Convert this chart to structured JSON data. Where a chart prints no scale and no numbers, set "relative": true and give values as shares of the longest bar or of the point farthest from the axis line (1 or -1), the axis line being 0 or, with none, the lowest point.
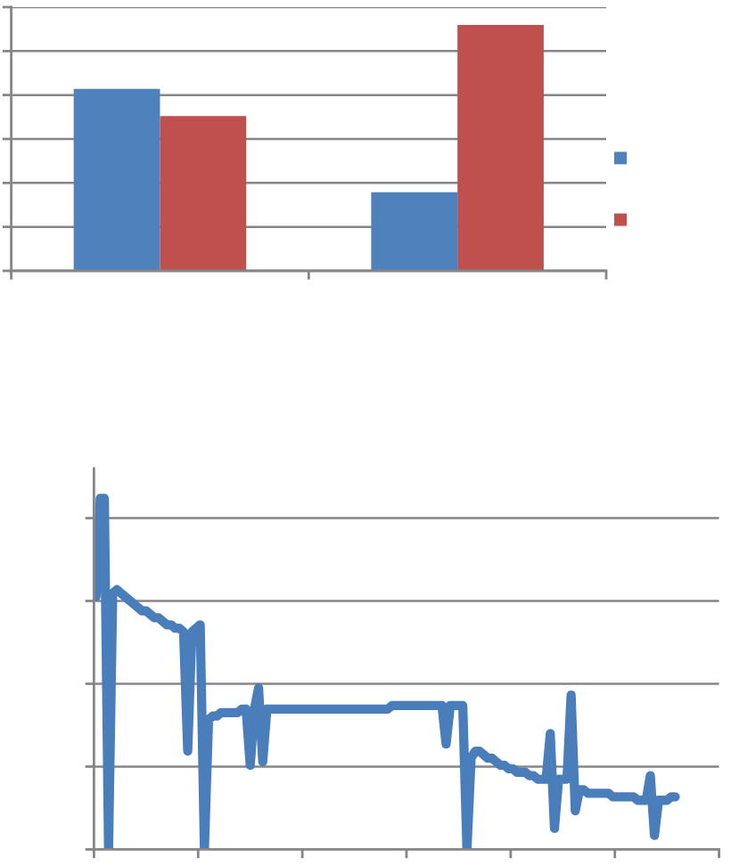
{
  "chart_data": [
    {
      "type": "bar",
      "relative": true,
      "categories": [
        null,
        null
      ],
      "series": [
        {
          "color": "#4f81bd",
          "values": [
            0.74,
            0.32
          ]
        },
        {
          "color": "#c0504d",
          "values": [
            0.63,
            1.0
          ]
        }
      ],
      "grid": "y"
    },
    {
      "type": "line",
      "relative": true,
      "grid": "y",
      "categories": [
        null,
        null,
        null,
        null,
        null,
        null,
        null,
        null,
        null,
        null,
        null,
        null,
        null,
        null,
        null,
        null,
        null,
        null,
        null,
        null,
        null,
        null,
        null,
        null,
        null,
        null,
        null,
        null,
        null,
        null,
        null,
        null,
        null,
        null,
        null,
        null,
        null,
        null,
        null,
        null,
        null,
        null,
        null,
        null,
        null,
        null,
        null,
        null,
        null,
        null,
        null,
        null,
        null,
        null,
        null,
        null,
        null,
        null,
        null,
        null,
        null,
        null,
        null,
        null,
        null,
        null,
        null,
        null,
        null,
        null,
        null,
        null,
        null,
        null,
        null,
        null,
        null,
        null,
        null,
        null,
        null,
        null,
        null,
        null,
        null,
        null,
        null,
        null,
        null,
        null,
        null,
        null,
        null,
        null,
        null,
        null,
        null,
        null,
        null,
        null,
        null,
        null,
        null,
        null,
        null,
        null,
        null,
        null,
        null,
        null,
        null,
        null,
        null,
        null,
        null,
        null,
        null,
        null,
        null,
        null,
        null,
        null,
        null,
        null,
        null,
        null,
        null,
        null,
        null,
        null,
        null,
        null,
        null,
        null,
        null,
        null,
        null,
        null,
        null,
        null,
        null,
        null,
        null,
        null,
        null,
        null,
        null,
        null,
        null,
        null
      ],
      "series": [
        {
          "color": "#4a7ebb",
          "values": [
            0.72,
            1.0,
            1.0,
            0,
            0.73,
            0.74,
            0.73,
            0.72,
            0.71,
            0.7,
            0.69,
            0.68,
            0.68,
            0.67,
            0.66,
            0.66,
            0.65,
            0.64,
            0.64,
            0.63,
            0.63,
            0.62,
            0.28,
            0.62,
            0.63,
            0.64,
            0,
            0.37,
            0.38,
            0.38,
            0.39,
            0.39,
            0.39,
            0.39,
            0.39,
            0.4,
            0.4,
            0.24,
            0.4,
            0.46,
            0.25,
            0.4,
            0.4,
            0.4,
            0.4,
            0.4,
            0.4,
            0.4,
            0.4,
            0.4,
            0.4,
            0.4,
            0.4,
            0.4,
            0.4,
            0.4,
            0.4,
            0.4,
            0.4,
            0.4,
            0.4,
            0.4,
            0.4,
            0.4,
            0.4,
            0.4,
            0.4,
            0.4,
            0.4,
            0.4,
            0.4,
            0.41,
            0.41,
            0.41,
            0.41,
            0.41,
            0.41,
            0.41,
            0.41,
            0.41,
            0.41,
            0.41,
            0.41,
            0.41,
            0.3,
            0.41,
            0.41,
            0.41,
            0.41,
            0,
            0.26,
            0.28,
            0.28,
            0.27,
            0.26,
            0.26,
            0.25,
            0.24,
            0.24,
            0.23,
            0.23,
            0.22,
            0.22,
            0.22,
            0.21,
            0.21,
            0.2,
            0.2,
            0.2,
            0.33,
            0.06,
            0.2,
            0.2,
            0.2,
            0.44,
            0.11,
            0.17,
            0.17,
            0.16,
            0.16,
            0.16,
            0.16,
            0.16,
            0.16,
            0.15,
            0.15,
            0.15,
            0.15,
            0.15,
            0.15,
            0.14,
            0.14,
            0.14,
            0.21,
            0.04,
            0.14,
            0.14,
            0.14,
            0.15,
            0.15,
            null,
            null,
            null,
            null,
            null,
            null,
            null,
            null,
            null,
            null
          ]
        }
      ]
    }
  ]
}
